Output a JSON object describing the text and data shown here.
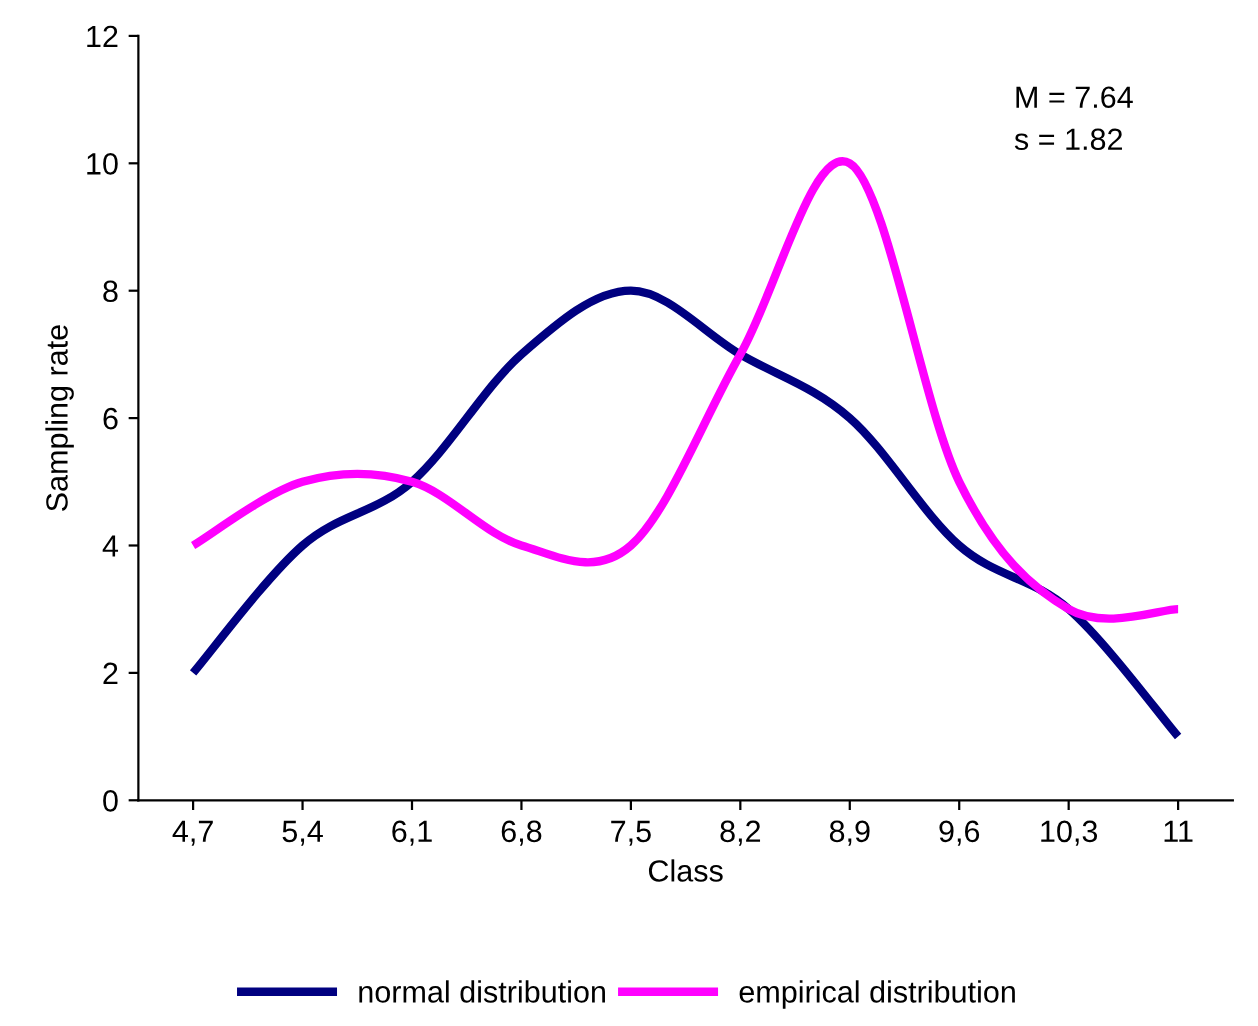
{
  "chart_data": {
    "type": "line",
    "xlabel": "Class",
    "ylabel": "Sampling rate",
    "categories": [
      "4,7",
      "5,4",
      "6,1",
      "6,8",
      "7,5",
      "8,2",
      "8,9",
      "9,6",
      "10,3",
      "11"
    ],
    "series": [
      {
        "name": "normal distribution",
        "color": "#000080",
        "values": [
          2,
          4,
          5,
          7,
          8,
          7,
          6,
          4,
          3,
          1
        ]
      },
      {
        "name": "empirical distribution",
        "color": "#ff00ff",
        "values": [
          4,
          5,
          5,
          4,
          4,
          7,
          10,
          5,
          3,
          3
        ]
      }
    ],
    "ylim": [
      0,
      12
    ],
    "yticks": [
      0,
      2,
      4,
      6,
      8,
      10,
      12
    ],
    "annotations": [
      "M = 7.64",
      "s = 1.82"
    ],
    "grid": false,
    "legend": "bottom",
    "marker": "none",
    "line_style": "solid"
  }
}
